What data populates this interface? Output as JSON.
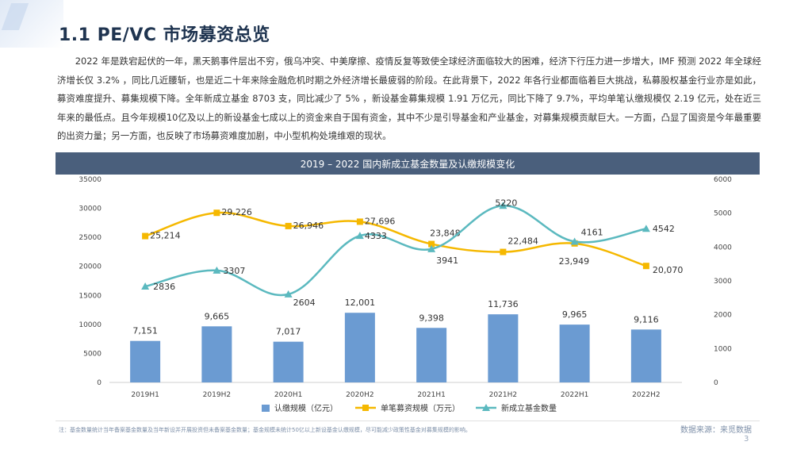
{
  "page": {
    "title": "1.1 PE/VC 市场募资总览",
    "intro": "2022 年是跌宕起伏的一年，黑天鹅事件层出不穷，俄乌冲突、中美摩擦、疫情反复等致使全球经济面临较大的困难，经济下行压力进一步增大，IMF 预测 2022 年全球经济增长仅 3.2% ，同比几近腰斩，也是近二十年来除金融危机时期之外经济增长最疲弱的阶段。在此背景下，2022 年各行业都面临着巨大挑战，私募股权基金行业亦是如此，募资难度提升、募集规模下降。全年新成立基金 8703 支，同比减少了 5% ，新设基金募集规模 1.91 万亿元，同比下降了 9.7%，平均单笔认缴规模仅 2.19 亿元，处在近三年来的最低点。且今年规模10亿及以上的新设基金七成以上的资金来自于国有资金，其中不少是引导基金和产业基金，对募集规模贡献巨大。一方面，凸显了国资是今年最重要的出资力量；另一方面，也反映了市场募资难度加剧，中小型机构处境维艰的现状。",
    "footnote": "注：基金数量统计当年备案基金数量及当年新设并开展投资但未备案基金数量；基金规模未统计50亿以上新设基金认缴规模，尽可能减少政策性基金对募集规模的影响。",
    "source": "数据来源：来觅数据",
    "page_number": "3"
  },
  "colors": {
    "header_bg": "#4a5f7c",
    "bar": "#6b9bd2",
    "line_avg": "#f5b800",
    "line_count": "#5bb9bf"
  },
  "chart_data": {
    "type": "bar+line",
    "title": "2019 – 2022 国内新成立基金数量及认缴规模变化",
    "categories": [
      "2019H1",
      "2019H2",
      "2020H1",
      "2020H2",
      "2021H1",
      "2021H2",
      "2022H1",
      "2022H2"
    ],
    "left_axis": {
      "ylim": [
        0,
        35000
      ],
      "ticks": [
        0,
        5000,
        10000,
        15000,
        20000,
        25000,
        30000,
        35000
      ]
    },
    "right_axis": {
      "ylim": [
        0,
        6000
      ],
      "ticks": [
        0,
        1000,
        2000,
        3000,
        4000,
        5000,
        6000
      ]
    },
    "grid": false,
    "legend_position": "bottom",
    "series": [
      {
        "name": "认缴规模（亿元）",
        "kind": "bar",
        "axis": "left",
        "values": [
          7151,
          9665,
          7017,
          12001,
          9398,
          11736,
          9965,
          9116
        ],
        "labels": [
          "7,151",
          "9,665",
          "7,017",
          "12,001",
          "9,398",
          "11,736",
          "9,965",
          "9,116"
        ]
      },
      {
        "name": "单笔募资规模（万元）",
        "kind": "line",
        "axis": "left",
        "marker": "square",
        "values": [
          25214,
          29226,
          26946,
          27696,
          23848,
          22484,
          23949,
          20070
        ],
        "labels": [
          "25,214",
          "29,226",
          "26,946",
          "27,696",
          "23,848",
          "22,484",
          "23,949",
          "20,070"
        ]
      },
      {
        "name": "新成立基金数量",
        "kind": "line",
        "axis": "right",
        "marker": "triangle",
        "values": [
          2836,
          3307,
          2604,
          4333,
          3941,
          5220,
          4161,
          4542
        ],
        "labels": [
          "2836",
          "3307",
          "2604",
          "4333",
          "3941",
          "5220",
          "4161",
          "4542"
        ]
      }
    ]
  }
}
